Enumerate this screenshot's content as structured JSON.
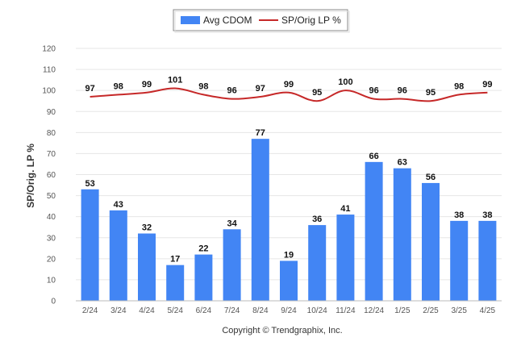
{
  "chart_data": {
    "type": "bar",
    "categories": [
      "2/24",
      "3/24",
      "4/24",
      "5/24",
      "6/24",
      "7/24",
      "8/24",
      "9/24",
      "10/24",
      "11/24",
      "12/24",
      "1/25",
      "2/25",
      "3/25",
      "4/25"
    ],
    "series": [
      {
        "name": "Avg CDOM",
        "kind": "bar",
        "color": "#4285f4",
        "values": [
          53,
          43,
          32,
          17,
          22,
          34,
          77,
          19,
          36,
          41,
          66,
          63,
          56,
          38,
          38
        ]
      },
      {
        "name": "SP/Orig LP %",
        "kind": "line",
        "color": "#c62828",
        "values": [
          97,
          98,
          99,
          101,
          98,
          96,
          97,
          99,
          95,
          100,
          96,
          96,
          95,
          98,
          99
        ]
      }
    ],
    "ylabel": "SP/Orig. LP %",
    "xlabel": "",
    "ylim": [
      0,
      120
    ],
    "yticks": [
      0,
      10,
      20,
      30,
      40,
      50,
      60,
      70,
      80,
      90,
      100,
      110,
      120
    ],
    "grid": true,
    "legend_position": "top-center",
    "footer": "Copyright © Trendgraphix, Inc."
  }
}
